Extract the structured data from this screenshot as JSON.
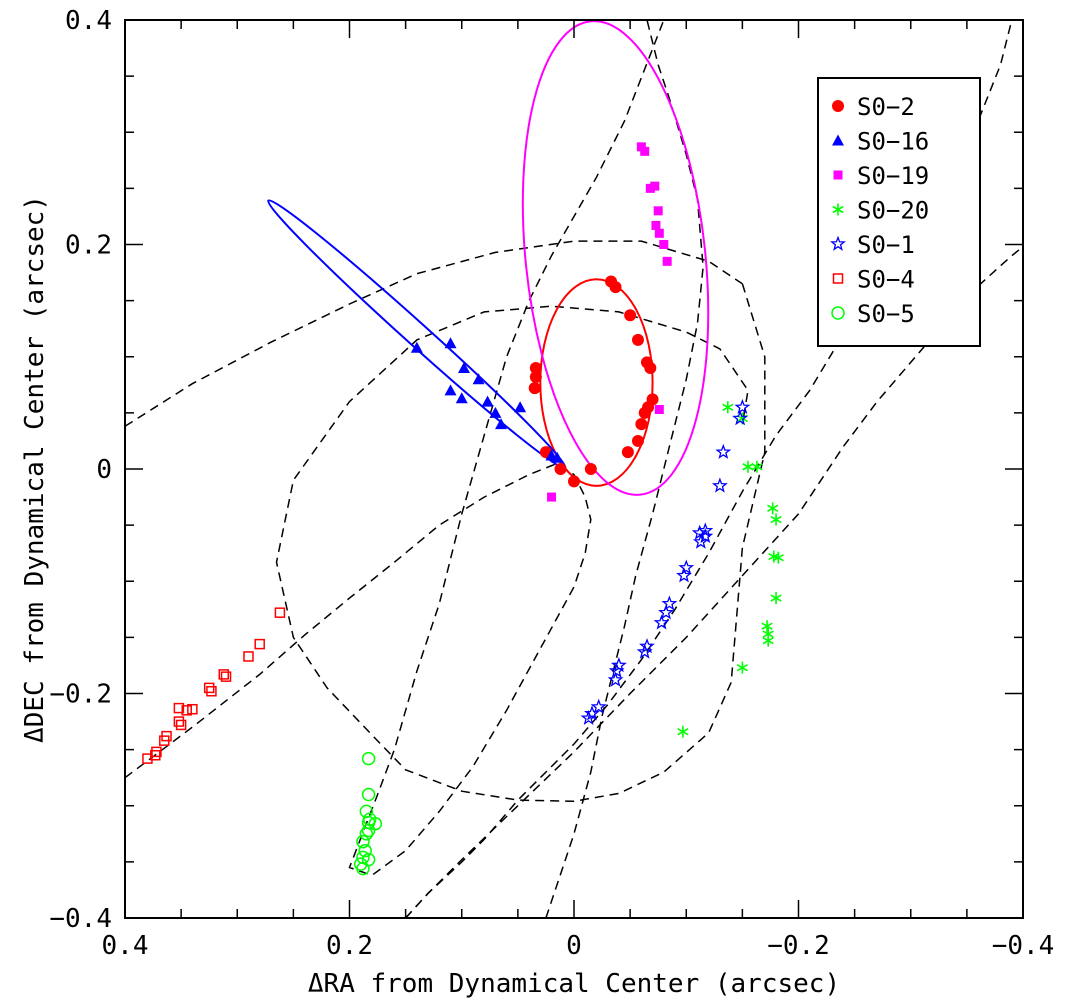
{
  "chart_data": {
    "type": "scatter",
    "title": "",
    "xlabel": "ΔRA from Dynamical Center (arcsec)",
    "ylabel": "ΔDEC from Dynamical Center (arcsec)",
    "xlim": [
      0.4,
      -0.4
    ],
    "ylim": [
      -0.4,
      0.4
    ],
    "x_ticks": [
      "0.4",
      "0.2",
      "0",
      "−0.2",
      "−0.4"
    ],
    "y_ticks": [
      "−0.4",
      "−0.2",
      "0",
      "0.2",
      "0.4"
    ],
    "grid": false,
    "legend_position": "top-right",
    "series": [
      {
        "name": "S0−2",
        "marker": "filled-circle",
        "color": "#ff0000",
        "points": [
          [
            0.034,
            0.09
          ],
          [
            0.034,
            0.082
          ],
          [
            0.035,
            0.072
          ],
          [
            0.025,
            0.015
          ],
          [
            0.012,
            0.0
          ],
          [
            0.0,
            -0.011
          ],
          [
            -0.015,
            0.0
          ],
          [
            -0.048,
            0.015
          ],
          [
            -0.057,
            0.025
          ],
          [
            -0.06,
            0.04
          ],
          [
            -0.063,
            0.05
          ],
          [
            -0.066,
            0.055
          ],
          [
            -0.07,
            0.062
          ],
          [
            -0.068,
            0.09
          ],
          [
            -0.065,
            0.095
          ],
          [
            -0.057,
            0.115
          ],
          [
            -0.05,
            0.137
          ],
          [
            -0.037,
            0.162
          ],
          [
            -0.033,
            0.167
          ]
        ],
        "orbit": {
          "cx": -0.02,
          "cy": 0.077,
          "a": 0.092,
          "b": 0.05,
          "angle": 90
        }
      },
      {
        "name": "S0−16",
        "marker": "filled-triangle",
        "color": "#0000ff",
        "points": [
          [
            0.14,
            0.108
          ],
          [
            0.11,
            0.112
          ],
          [
            0.11,
            0.07
          ],
          [
            0.1,
            0.063
          ],
          [
            0.098,
            0.09
          ],
          [
            0.085,
            0.08
          ],
          [
            0.077,
            0.06
          ],
          [
            0.07,
            0.05
          ],
          [
            0.065,
            0.04
          ],
          [
            0.048,
            0.055
          ],
          [
            0.02,
            0.012
          ],
          [
            0.015,
            0.01
          ]
        ],
        "orbit": {
          "cx": 0.14,
          "cy": 0.12,
          "a": 0.178,
          "b": 0.01,
          "angle": -42
        }
      },
      {
        "name": "S0−19",
        "marker": "filled-square",
        "color": "#ff00ff",
        "points": [
          [
            -0.06,
            0.287
          ],
          [
            -0.063,
            0.283
          ],
          [
            -0.068,
            0.25
          ],
          [
            -0.072,
            0.252
          ],
          [
            -0.075,
            0.23
          ],
          [
            -0.073,
            0.217
          ],
          [
            -0.076,
            0.21
          ],
          [
            -0.08,
            0.2
          ],
          [
            -0.083,
            0.185
          ],
          [
            -0.076,
            0.053
          ],
          [
            0.02,
            -0.025
          ]
        ],
        "orbit": {
          "cx": -0.037,
          "cy": 0.188,
          "a": 0.212,
          "b": 0.08,
          "angle": 96
        }
      },
      {
        "name": "S0−20",
        "marker": "asterisk",
        "color": "#00ff00",
        "points": [
          [
            -0.137,
            0.055
          ],
          [
            -0.15,
            0.045
          ],
          [
            -0.155,
            0.002
          ],
          [
            -0.163,
            0.002
          ],
          [
            -0.177,
            -0.035
          ],
          [
            -0.18,
            -0.045
          ],
          [
            -0.178,
            -0.078
          ],
          [
            -0.182,
            -0.079
          ],
          [
            -0.18,
            -0.115
          ],
          [
            -0.172,
            -0.14
          ],
          [
            -0.173,
            -0.147
          ],
          [
            -0.173,
            -0.153
          ],
          [
            -0.15,
            -0.177
          ],
          [
            -0.097,
            -0.234
          ]
        ]
      },
      {
        "name": "S0−1",
        "marker": "open-star",
        "color": "#0000ff",
        "points": [
          [
            -0.15,
            0.055
          ],
          [
            -0.148,
            0.045
          ],
          [
            -0.133,
            0.015
          ],
          [
            -0.13,
            -0.015
          ],
          [
            -0.117,
            -0.055
          ],
          [
            -0.117,
            -0.06
          ],
          [
            -0.112,
            -0.057
          ],
          [
            -0.113,
            -0.065
          ],
          [
            -0.1,
            -0.088
          ],
          [
            -0.098,
            -0.095
          ],
          [
            -0.085,
            -0.12
          ],
          [
            -0.082,
            -0.128
          ],
          [
            -0.078,
            -0.137
          ],
          [
            -0.065,
            -0.158
          ],
          [
            -0.063,
            -0.163
          ],
          [
            -0.04,
            -0.175
          ],
          [
            -0.038,
            -0.18
          ],
          [
            -0.037,
            -0.188
          ],
          [
            -0.022,
            -0.212
          ],
          [
            -0.016,
            -0.218
          ],
          [
            -0.013,
            -0.222
          ]
        ]
      },
      {
        "name": "S0−4",
        "marker": "open-square",
        "color": "#ff0000",
        "points": [
          [
            0.38,
            -0.258
          ],
          [
            0.373,
            -0.255
          ],
          [
            0.372,
            -0.252
          ],
          [
            0.365,
            -0.242
          ],
          [
            0.363,
            -0.238
          ],
          [
            0.35,
            -0.228
          ],
          [
            0.352,
            -0.225
          ],
          [
            0.34,
            -0.214
          ],
          [
            0.345,
            -0.215
          ],
          [
            0.352,
            -0.213
          ],
          [
            0.325,
            -0.195
          ],
          [
            0.323,
            -0.198
          ],
          [
            0.31,
            -0.185
          ],
          [
            0.312,
            -0.183
          ],
          [
            0.29,
            -0.167
          ],
          [
            0.28,
            -0.156
          ],
          [
            0.262,
            -0.128
          ]
        ]
      },
      {
        "name": "S0−5",
        "marker": "open-circle",
        "color": "#00ff00",
        "points": [
          [
            0.183,
            -0.258
          ],
          [
            0.183,
            -0.29
          ],
          [
            0.185,
            -0.305
          ],
          [
            0.182,
            -0.312
          ],
          [
            0.183,
            -0.315
          ],
          [
            0.177,
            -0.316
          ],
          [
            0.183,
            -0.322
          ],
          [
            0.185,
            -0.325
          ],
          [
            0.188,
            -0.332
          ],
          [
            0.186,
            -0.34
          ],
          [
            0.188,
            -0.346
          ],
          [
            0.183,
            -0.348
          ],
          [
            0.19,
            -0.352
          ],
          [
            0.188,
            -0.356
          ]
        ]
      }
    ],
    "dashed_orbits": [
      [
        [
          0.4,
          0.038
        ],
        [
          0.34,
          0.076
        ],
        [
          0.27,
          0.113
        ],
        [
          0.2,
          0.147
        ],
        [
          0.14,
          0.174
        ],
        [
          0.07,
          0.193
        ],
        [
          0.0,
          0.203
        ],
        [
          -0.06,
          0.203
        ],
        [
          -0.12,
          0.185
        ],
        [
          -0.15,
          0.165
        ]
      ],
      [
        [
          -0.15,
          0.165
        ],
        [
          -0.17,
          0.1
        ],
        [
          -0.17,
          0.015
        ],
        [
          -0.15,
          -0.07
        ],
        [
          -0.14,
          -0.19
        ],
        [
          -0.12,
          -0.235
        ],
        [
          -0.08,
          -0.27
        ],
        [
          -0.04,
          -0.289
        ],
        [
          0.0,
          -0.296
        ],
        [
          0.05,
          -0.295
        ],
        [
          0.1,
          -0.287
        ],
        [
          0.15,
          -0.268
        ],
        [
          0.18,
          -0.237
        ],
        [
          0.22,
          -0.195
        ],
        [
          0.25,
          -0.15
        ],
        [
          0.265,
          -0.083
        ],
        [
          0.25,
          -0.01
        ],
        [
          0.2,
          0.06
        ],
        [
          0.14,
          0.115
        ],
        [
          0.08,
          0.14
        ],
        [
          0.02,
          0.145
        ],
        [
          -0.04,
          0.14
        ],
        [
          -0.1,
          0.122
        ],
        [
          -0.13,
          0.107
        ],
        [
          -0.155,
          0.07
        ],
        [
          -0.15,
          0.04
        ]
      ],
      [
        [
          0.4,
          -0.275
        ],
        [
          0.34,
          -0.23
        ],
        [
          0.28,
          -0.183
        ],
        [
          0.24,
          -0.148
        ],
        [
          0.2,
          -0.115
        ],
        [
          0.16,
          -0.083
        ],
        [
          0.12,
          -0.05
        ],
        [
          0.08,
          -0.025
        ],
        [
          0.04,
          -0.005
        ],
        [
          0.015,
          0.005
        ],
        [
          0.0,
          -0.005
        ],
        [
          -0.01,
          -0.025
        ],
        [
          -0.015,
          -0.045
        ],
        [
          -0.01,
          -0.075
        ],
        [
          0.0,
          -0.105
        ],
        [
          0.03,
          -0.16
        ],
        [
          0.06,
          -0.215
        ],
        [
          0.09,
          -0.265
        ],
        [
          0.12,
          -0.305
        ],
        [
          0.15,
          -0.34
        ],
        [
          0.18,
          -0.362
        ],
        [
          0.2,
          -0.355
        ],
        [
          0.175,
          -0.29
        ],
        [
          0.16,
          -0.25
        ],
        [
          0.14,
          -0.18
        ],
        [
          0.12,
          -0.12
        ],
        [
          0.1,
          -0.04
        ],
        [
          0.08,
          0.03
        ],
        [
          0.06,
          0.1
        ],
        [
          0.04,
          0.15
        ],
        [
          0.02,
          0.19
        ],
        [
          -0.02,
          0.26
        ],
        [
          -0.045,
          0.31
        ],
        [
          -0.08,
          0.4
        ]
      ],
      [
        [
          0.15,
          -0.4
        ],
        [
          0.13,
          -0.378
        ],
        [
          0.1,
          -0.348
        ],
        [
          0.05,
          -0.3
        ],
        [
          0.0,
          -0.252
        ],
        [
          -0.05,
          -0.2
        ],
        [
          -0.1,
          -0.15
        ],
        [
          -0.15,
          -0.095
        ],
        [
          -0.2,
          -0.04
        ],
        [
          -0.24,
          0.02
        ],
        [
          -0.27,
          0.06
        ],
        [
          -0.3,
          0.095
        ],
        [
          -0.33,
          0.13
        ],
        [
          -0.36,
          0.163
        ],
        [
          -0.39,
          0.19
        ],
        [
          -0.4,
          0.198
        ]
      ],
      [
        [
          0.15,
          -0.4
        ],
        [
          0.13,
          -0.378
        ],
        [
          0.1,
          -0.35
        ],
        [
          0.08,
          -0.33
        ],
        [
          0.05,
          -0.295
        ],
        [
          0.03,
          -0.275
        ],
        [
          0.0,
          -0.245
        ],
        [
          -0.03,
          -0.21
        ],
        [
          -0.06,
          -0.17
        ],
        [
          -0.09,
          -0.125
        ],
        [
          -0.12,
          -0.075
        ],
        [
          -0.15,
          -0.02
        ],
        [
          -0.18,
          0.03
        ],
        [
          -0.21,
          0.07
        ],
        [
          -0.24,
          0.12
        ],
        [
          -0.27,
          0.16
        ],
        [
          -0.31,
          0.21
        ],
        [
          -0.34,
          0.26
        ],
        [
          -0.36,
          0.31
        ],
        [
          -0.38,
          0.36
        ],
        [
          -0.39,
          0.4
        ]
      ],
      [
        [
          0.025,
          -0.4
        ],
        [
          0.01,
          -0.355
        ],
        [
          0.0,
          -0.325
        ],
        [
          -0.015,
          -0.27
        ],
        [
          -0.025,
          -0.22
        ],
        [
          -0.035,
          -0.18
        ],
        [
          -0.045,
          -0.14
        ],
        [
          -0.055,
          -0.095
        ],
        [
          -0.07,
          -0.04
        ],
        [
          -0.085,
          0.02
        ],
        [
          -0.1,
          0.08
        ],
        [
          -0.11,
          0.13
        ],
        [
          -0.115,
          0.18
        ],
        [
          -0.11,
          0.24
        ],
        [
          -0.1,
          0.28
        ],
        [
          -0.085,
          0.33
        ],
        [
          -0.075,
          0.36
        ],
        [
          -0.065,
          0.4
        ]
      ]
    ]
  }
}
